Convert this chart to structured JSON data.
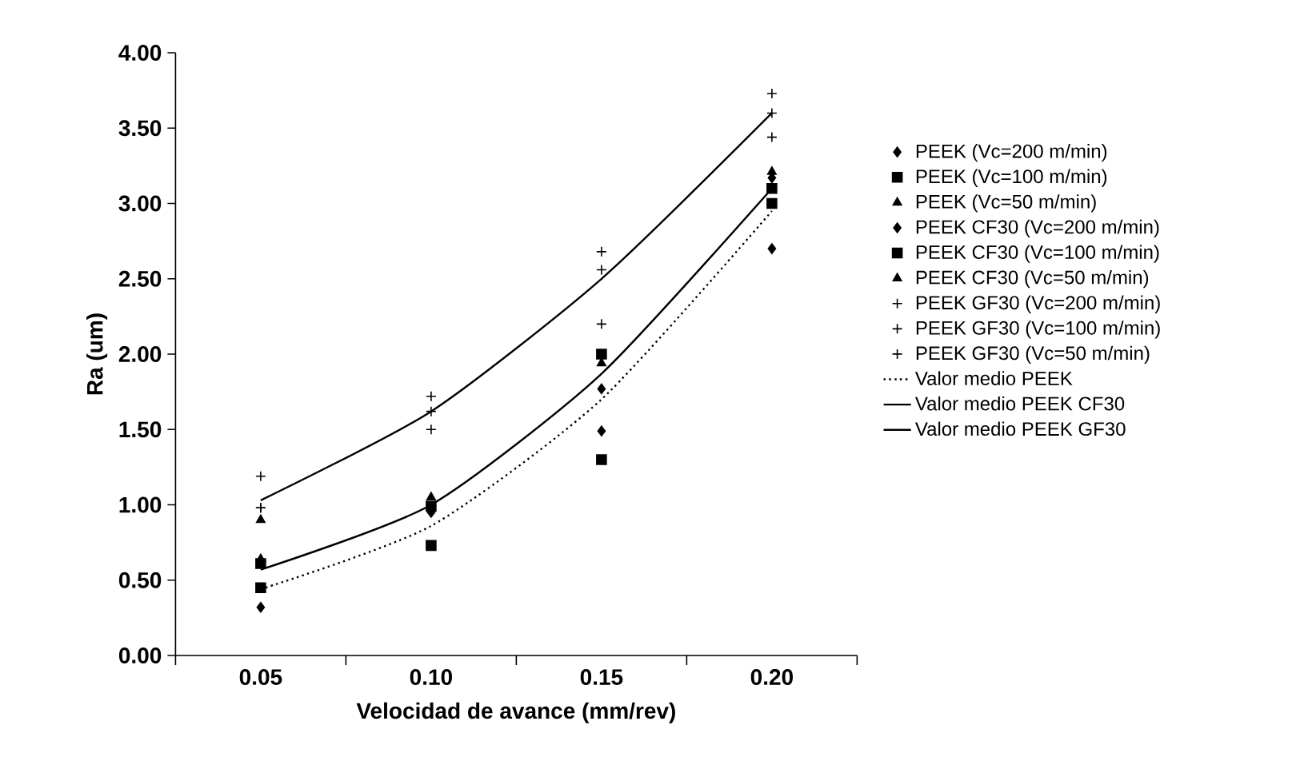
{
  "chart_data": {
    "type": "scatter",
    "xlabel": "Velocidad de avance (mm/rev)",
    "ylabel": "Ra (um)",
    "categories": [
      "0.05",
      "0.10",
      "0.15",
      "0.20"
    ],
    "ylim": [
      0,
      4
    ],
    "yticks": [
      {
        "value": 0,
        "label": "0.00"
      },
      {
        "value": 0.5,
        "label": "0.50"
      },
      {
        "value": 1,
        "label": "1.00"
      },
      {
        "value": 1.5,
        "label": "1.50"
      },
      {
        "value": 2,
        "label": "2.00"
      },
      {
        "value": 2.5,
        "label": "2.50"
      },
      {
        "value": 3,
        "label": "3.00"
      },
      {
        "value": 3.5,
        "label": "3.50"
      },
      {
        "value": 4,
        "label": "4.00"
      }
    ],
    "legend": "right",
    "grid": false,
    "series": [
      {
        "name": "PEEK (Vc=200 m/min)",
        "color": "#000000",
        "marker": "diamond",
        "values": [
          0.32,
          null,
          1.49,
          2.7
        ]
      },
      {
        "name": "PEEK (Vc=100 m/min)",
        "color": "#000000",
        "marker": "square",
        "values": [
          0.45,
          0.73,
          1.3,
          3.1
        ]
      },
      {
        "name": "PEEK (Vc=50 m/min)",
        "color": "#000000",
        "marker": "triangle",
        "values": [
          0.9,
          null,
          null,
          null
        ]
      },
      {
        "name": "PEEK CF30 (Vc=200 m/min)",
        "color": "#000000",
        "marker": "diamond",
        "values": [
          null,
          0.95,
          1.77,
          3.17
        ]
      },
      {
        "name": "PEEK CF30 (Vc=100 m/min)",
        "color": "#000000",
        "marker": "square",
        "values": [
          0.61,
          0.99,
          2.0,
          3.0
        ]
      },
      {
        "name": "PEEK CF30 (Vc=50 m/min)",
        "color": "#000000",
        "marker": "triangle",
        "values": [
          0.64,
          1.05,
          1.94,
          3.21
        ]
      },
      {
        "name": "PEEK GF30 (Vc=200 m/min)",
        "color": "#000000",
        "marker": "cross",
        "values": [
          0.98,
          1.5,
          2.2,
          3.44
        ]
      },
      {
        "name": "PEEK GF30 (Vc=100 m/min)",
        "color": "#000000",
        "marker": "cross",
        "values": [
          0.98,
          1.62,
          2.56,
          3.6
        ]
      },
      {
        "name": "PEEK GF30 (Vc=50 m/min)",
        "color": "#000000",
        "marker": "cross",
        "values": [
          1.19,
          1.72,
          2.68,
          3.73
        ]
      },
      {
        "name": "Valor medio PEEK",
        "type": "line",
        "color": "#000000",
        "line_style": "dotted",
        "values": [
          0.44,
          0.86,
          1.7,
          2.95
        ]
      },
      {
        "name": "Valor medio PEEK CF30",
        "type": "line",
        "color": "#000000",
        "line_style": "solid",
        "values": [
          0.57,
          1.0,
          1.87,
          3.1
        ]
      },
      {
        "name": "Valor medio PEEK GF30",
        "type": "line",
        "color": "#000000",
        "line_style": "solid",
        "values": [
          1.03,
          1.62,
          2.5,
          3.6
        ]
      }
    ]
  }
}
